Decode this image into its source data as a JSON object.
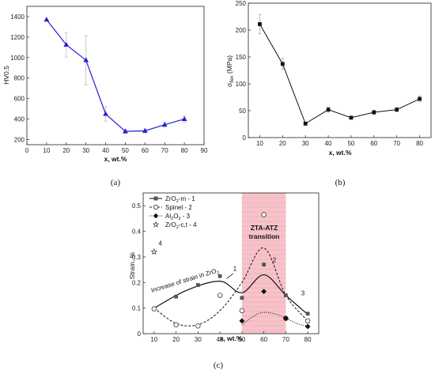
{
  "chart_data": [
    {
      "panel": "a",
      "type": "line",
      "caption": "(a)",
      "xlabel": "x, wt.%",
      "ylabel": "HV0.5",
      "xlim": [
        0,
        90
      ],
      "ylim": [
        150,
        1500
      ],
      "xticks": [
        "0",
        "10",
        "20",
        "30",
        "40",
        "50",
        "60",
        "70",
        "80",
        "90"
      ],
      "yticks": [
        "200",
        "400",
        "600",
        "800",
        "1000",
        "1200",
        "1400"
      ],
      "x": [
        10,
        20,
        30,
        40,
        50,
        60,
        70,
        80
      ],
      "series": [
        {
          "values": [
            1370,
            1125,
            975,
            450,
            280,
            285,
            345,
            400
          ],
          "errors": [
            0,
            120,
            240,
            70,
            20,
            20,
            25,
            30
          ],
          "color": "#2222cc",
          "marker": "triangle"
        }
      ],
      "grid": false
    },
    {
      "panel": "b",
      "type": "line",
      "caption": "(b)",
      "xlabel": "x, wt.%",
      "ylabel_main": "σ",
      "ylabel_sub": "flex",
      "ylabel_tail": " (MPa)",
      "xlim": [
        5,
        85
      ],
      "ylim": [
        0,
        250
      ],
      "xticks": [
        "10",
        "20",
        "30",
        "40",
        "50",
        "60",
        "70",
        "80"
      ],
      "yticks": [
        "0",
        "50",
        "100",
        "150",
        "200",
        "250"
      ],
      "x": [
        10,
        20,
        30,
        40,
        50,
        60,
        70,
        80
      ],
      "series": [
        {
          "values": [
            211,
            137,
            26,
            52,
            37,
            47,
            52,
            72
          ],
          "errors": [
            18,
            10,
            3,
            5,
            3,
            4,
            4,
            5
          ],
          "color": "#111111",
          "marker": "square"
        }
      ],
      "grid": false
    },
    {
      "panel": "c",
      "type": "scatter",
      "caption": "(c)",
      "xlabel": "x, wt.%",
      "ylabel": "Strain, %",
      "xlim": [
        5,
        85
      ],
      "ylim": [
        0,
        0.55
      ],
      "xticks": [
        "10",
        "20",
        "30",
        "40",
        "50",
        "60",
        "70",
        "80"
      ],
      "yticks": [
        "0",
        "0.1",
        "0.2",
        "0.3",
        "0.4",
        "0.5"
      ],
      "band": {
        "from": 50,
        "to": 70,
        "color": "#f5b8bf",
        "label_1": "ZTA-ATZ",
        "label_2": "transition"
      },
      "annotation": {
        "text_main": "Increase of strain in ZrO",
        "text_sub": "2"
      },
      "series": [
        {
          "name_main": "ZrO",
          "name_sub": "2",
          "name_tail": "-m - 1",
          "marker": "square-filled",
          "color": "#555555",
          "line": "solid",
          "tag": "1",
          "x": [
            10,
            20,
            30,
            40,
            50,
            60,
            70,
            80
          ],
          "values": [
            0.098,
            0.145,
            0.19,
            0.225,
            0.14,
            0.27,
            0.15,
            0.078
          ]
        },
        {
          "name_main": "Spinel - 2",
          "name_sub": "",
          "name_tail": "",
          "marker": "circle-open",
          "color": "#333333",
          "line": "dashed",
          "tag": "2",
          "x": [
            10,
            20,
            30,
            40,
            50,
            60,
            70,
            80
          ],
          "values": [
            0.097,
            0.035,
            0.03,
            0.15,
            0.09,
            0.465,
            0.06,
            0.05
          ]
        },
        {
          "name_main": "Al",
          "name_sub": "2",
          "name_tail": "O",
          "name_sub2": "3",
          "name_tail2": " - 3",
          "marker": "diamond-filled",
          "color": "#111111",
          "line": "dotted",
          "tag": "3",
          "x": [
            50,
            60,
            70,
            80
          ],
          "values": [
            0.05,
            0.165,
            0.06,
            0.028
          ]
        },
        {
          "name_main": "ZrO",
          "name_sub": "2",
          "name_tail": "-c,t - 4",
          "marker": "star-open",
          "color": "#333333",
          "line": "none",
          "tag": "4",
          "x": [
            10
          ],
          "values": [
            0.32
          ]
        }
      ]
    }
  ]
}
